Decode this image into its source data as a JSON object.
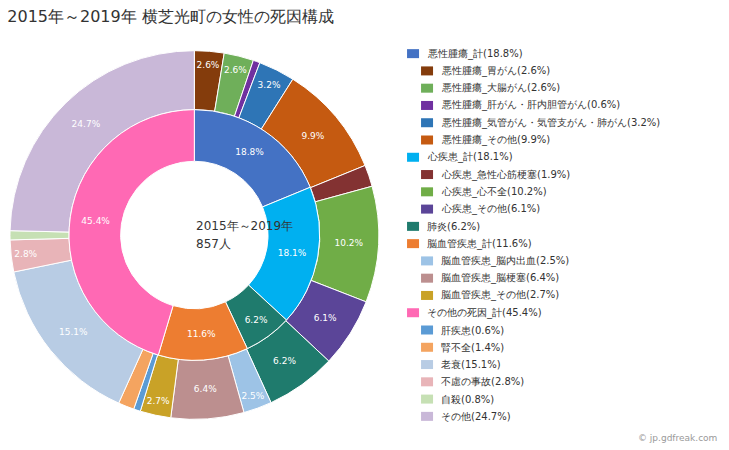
{
  "chart_data": {
    "type": "donut",
    "title": "2015年～2019年 横芝光町の女性の死因構成",
    "center_text": [
      "2015年～2019年",
      "857人"
    ],
    "annotations": [
      "© jp.gdfreak.com"
    ],
    "data_labels": true,
    "legend": "right",
    "series": [
      {
        "labels": [
          "悪性腫瘍_計(18.8%)",
          "心疾患_計(18.1%)",
          "肺炎(6.2%)",
          "脳血管疾患_計(11.6%)",
          "その他の死因_計(45.4%)"
        ],
        "values": [
          18.8,
          18.1,
          6.2,
          11.6,
          45.4
        ],
        "colors": [
          "#4472C4",
          "#00B0F0",
          "#1F7B6D",
          "#ED7D31",
          "#FF69B4"
        ],
        "value_labels": [
          "18.8%",
          "18.1%",
          "6.2%",
          "11.6%",
          "45.4%"
        ]
      },
      {
        "labels": [
          "悪性腫瘍_胃がん(2.6%)",
          "悪性腫瘍_大腸がん(2.6%)",
          "悪性腫瘍_肝がん・肝内胆管がん(0.6%)",
          "悪性腫瘍_気管がん・気管支がん・肺がん(3.2%)",
          "悪性腫瘍_その他(9.9%)",
          "心疾患_急性心筋梗塞(1.9%)",
          "心疾患_心不全(10.2%)",
          "心疾患_その他(6.1%)",
          "肺炎(6.2%)",
          "脳血管疾患_脳内出血(2.5%)",
          "脳血管疾患_脳梗塞(6.4%)",
          "脳血管疾患_その他(2.7%)",
          "肝疾患(0.6%)",
          "腎不全(1.4%)",
          "老衰(15.1%)",
          "不慮の事故(2.8%)",
          "自殺(0.8%)",
          "その他(24.7%)"
        ],
        "values": [
          2.6,
          2.6,
          0.6,
          3.2,
          9.9,
          1.9,
          10.2,
          6.1,
          6.2,
          2.5,
          6.4,
          2.7,
          0.6,
          1.4,
          15.1,
          2.8,
          0.8,
          24.7
        ],
        "colors": [
          "#843C0C",
          "#6FAF5A",
          "#7030A0",
          "#2E75B6",
          "#C55A11",
          "#833232",
          "#70AD47",
          "#5B4598",
          "#1F7B6D",
          "#9DC3E6",
          "#BC8F8F",
          "#C9A227",
          "#5B9BD5",
          "#F4A460",
          "#B8CCE4",
          "#E8B4B8",
          "#C6E0B4",
          "#C9B8D8"
        ],
        "value_labels": [
          "2.6%",
          "2.6%",
          null,
          "3.2%",
          "9.9%",
          null,
          "10.2%",
          "6.1%",
          "6.2%",
          "2.5%",
          "6.4%",
          "2.7%",
          null,
          null,
          "15.1%",
          "2.8%",
          null,
          "24.7%"
        ]
      }
    ],
    "legend_entries": [
      "悪性腫瘍_計(18.8%)",
      "悪性腫瘍_胃がん(2.6%)",
      "悪性腫瘍_大腸がん(2.6%)",
      "悪性腫瘍_肝がん・肝内胆管がん(0.6%)",
      "悪性腫瘍_気管がん・気管支がん・肺がん(3.2%)",
      "悪性腫瘍_その他(9.9%)",
      "心疾患_計(18.1%)",
      "心疾患_急性心筋梗塞(1.9%)",
      "心疾患_心不全(10.2%)",
      "心疾患_その他(6.1%)",
      "肺炎(6.2%)",
      "脳血管疾患_計(11.6%)",
      "脳血管疾患_脳内出血(2.5%)",
      "脳血管疾患_脳梗塞(6.4%)",
      "脳血管疾患_その他(2.7%)",
      "その他の死因_計(45.4%)",
      "肝疾患(0.6%)",
      "腎不全(1.4%)",
      "老衰(15.1%)",
      "不慮の事故(2.8%)",
      "自殺(0.8%)",
      "その他(24.7%)"
    ]
  }
}
